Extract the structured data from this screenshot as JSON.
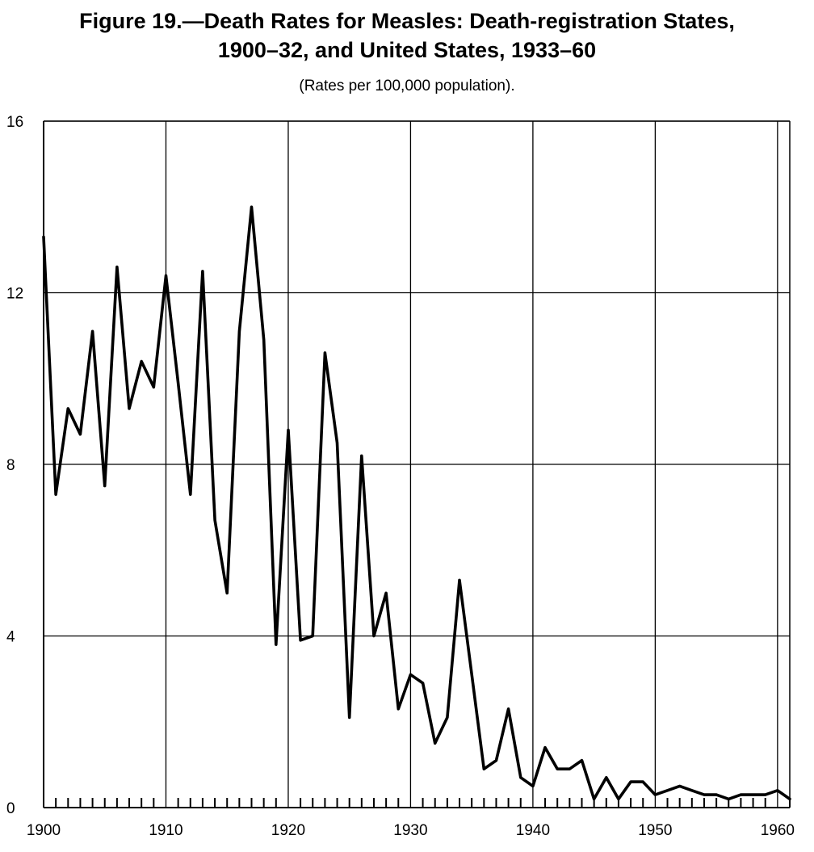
{
  "title_line1": "Figure 19.—Death Rates for Measles:  Death-registration States,",
  "title_line2": "1900–32, and United States, 1933–60",
  "subtitle": "(Rates per 100,000 population).",
  "chart_data": {
    "type": "line",
    "title": "Figure 19.—Death Rates for Measles:  Death-registration States, 1900–32, and United States, 1933–60",
    "subtitle": "(Rates per 100,000 population).",
    "xlabel": "",
    "ylabel": "",
    "xlim": [
      1900,
      1961
    ],
    "ylim": [
      0,
      16
    ],
    "x_ticks": [
      1900,
      1910,
      1920,
      1930,
      1940,
      1950,
      1960
    ],
    "y_ticks": [
      0,
      4,
      8,
      12,
      16
    ],
    "grid": true,
    "color": "#000000",
    "series": [
      {
        "x": [
          1900,
          1901,
          1902,
          1903,
          1904,
          1905,
          1906,
          1907,
          1908,
          1909,
          1910,
          1911,
          1912,
          1913,
          1914,
          1915,
          1916,
          1917,
          1918,
          1919,
          1920,
          1921,
          1922,
          1923,
          1924,
          1925,
          1926,
          1927,
          1928,
          1929,
          1930,
          1931,
          1932,
          1933,
          1934,
          1935,
          1936,
          1937,
          1938,
          1939,
          1940,
          1941,
          1942,
          1943,
          1944,
          1945,
          1946,
          1947,
          1948,
          1949,
          1950,
          1951,
          1952,
          1953,
          1954,
          1955,
          1956,
          1957,
          1958,
          1959,
          1960,
          1961
        ],
        "y": [
          13.3,
          7.3,
          9.3,
          8.7,
          11.1,
          7.5,
          12.6,
          9.3,
          10.4,
          9.8,
          12.4,
          9.9,
          7.3,
          12.5,
          6.7,
          5.0,
          11.1,
          14.0,
          10.9,
          3.8,
          8.8,
          3.9,
          4.0,
          10.6,
          8.5,
          2.1,
          8.2,
          4.0,
          5.0,
          2.3,
          3.1,
          2.9,
          1.5,
          2.1,
          5.3,
          3.1,
          0.9,
          1.1,
          2.3,
          0.7,
          0.5,
          1.4,
          0.9,
          0.9,
          1.1,
          0.2,
          0.7,
          0.2,
          0.6,
          0.6,
          0.3,
          0.4,
          0.5,
          0.4,
          0.3,
          0.3,
          0.2,
          0.3,
          0.3,
          0.3,
          0.4,
          0.2
        ]
      }
    ]
  }
}
